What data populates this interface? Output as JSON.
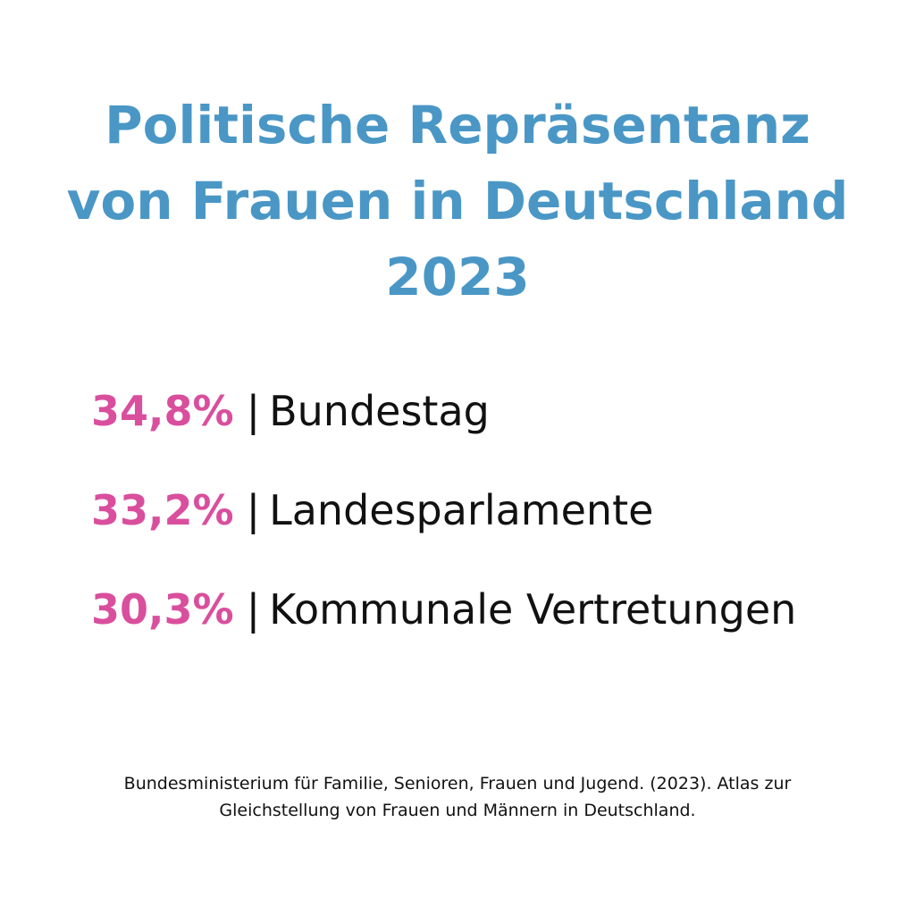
{
  "title": {
    "lines": [
      "Politische Repräsentanz",
      "von Frauen in Deutschland",
      "2023"
    ]
  },
  "stats": [
    {
      "value": "34,8%",
      "separator": "|",
      "label": "Bundestag"
    },
    {
      "value": "33,2%",
      "separator": "|",
      "label": "Landesparlamente"
    },
    {
      "value": "30,3%",
      "separator": "|",
      "label": "Kommunale Vertretungen"
    }
  ],
  "source": {
    "lines": [
      "Bundesministerium für Familie, Senioren, Frauen und Jugend. (2023). Atlas zur",
      "Gleichstellung von Frauen und Männern in Deutschland."
    ]
  },
  "colors": {
    "title": "#4a97c6",
    "accent": "#d94f9d",
    "text": "#111111"
  }
}
